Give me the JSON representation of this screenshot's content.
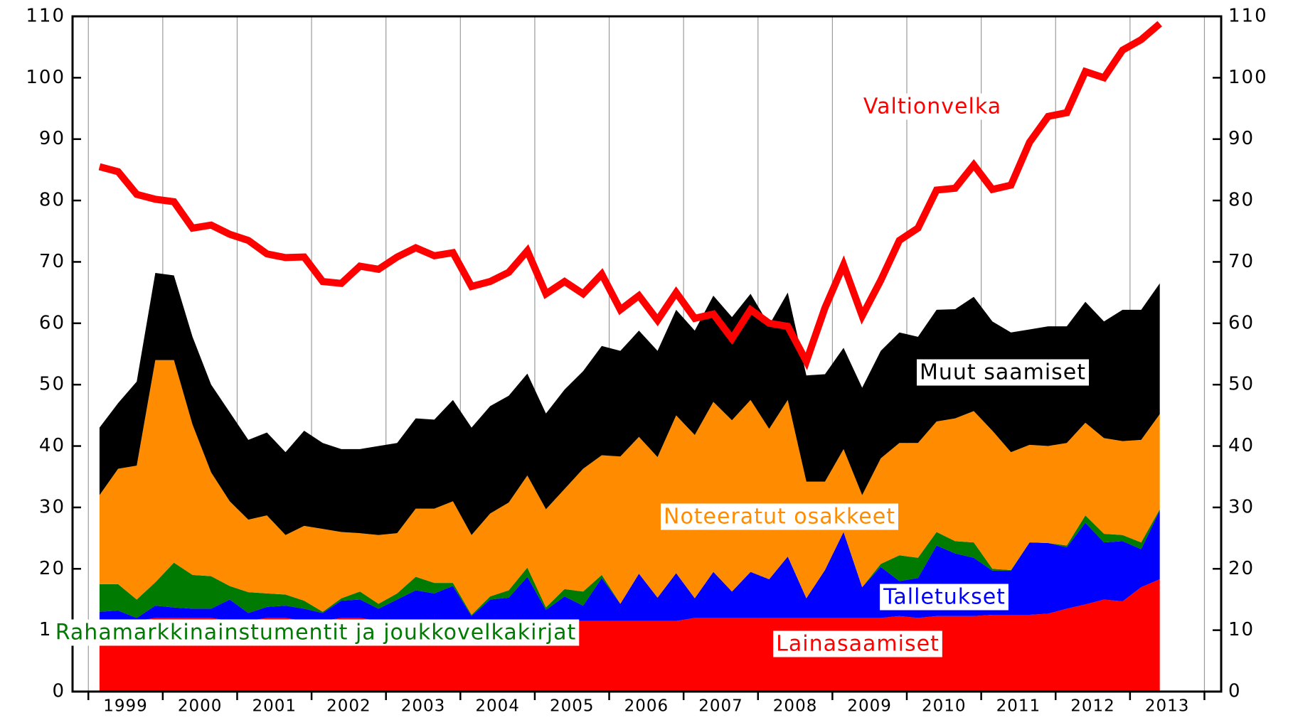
{
  "chart_data": {
    "type": "stacked_area",
    "categories": [
      null,
      "1999",
      null,
      null,
      null,
      "2000",
      null,
      null,
      null,
      "2001",
      null,
      null,
      null,
      "2002",
      null,
      null,
      null,
      "2003",
      null,
      null,
      null,
      "2004",
      null,
      null,
      null,
      "2005",
      null,
      null,
      null,
      "2006",
      null,
      null,
      null,
      "2007",
      null,
      null,
      null,
      "2008",
      null,
      null,
      null,
      "2009",
      null,
      null,
      null,
      "2010",
      null,
      null,
      null,
      "2011",
      null,
      null,
      null,
      "2012",
      null,
      null,
      null,
      "2013"
    ],
    "ylim": [
      0,
      110
    ],
    "yticks": [
      0,
      10,
      20,
      30,
      40,
      50,
      60,
      70,
      80,
      90,
      100,
      110
    ],
    "y2lim": [
      0,
      110
    ],
    "y2ticks": [
      0,
      10,
      20,
      30,
      40,
      50,
      60,
      70,
      80,
      90,
      100,
      110
    ],
    "series": [
      {
        "name": "Lainasaamiset",
        "color": "#ff0000",
        "values": [
          11.5,
          11.5,
          11.5,
          12,
          12,
          12,
          12,
          11.5,
          11.5,
          12,
          12,
          11.5,
          11.5,
          12,
          12,
          11.5,
          11.5,
          11.5,
          11.5,
          11.5,
          11.5,
          11.5,
          11.5,
          11.5,
          11.5,
          11.5,
          11.5,
          11.5,
          11.5,
          11.5,
          11.5,
          11.5,
          12,
          12,
          12,
          12,
          12,
          12,
          12,
          12,
          12,
          12,
          12,
          12.3,
          12,
          12.3,
          12.3,
          12.3,
          12.5,
          12.5,
          12.5,
          12.7,
          13.5,
          14.2,
          15,
          14.7,
          17,
          18.3
        ]
      },
      {
        "name": "Talletukset",
        "color": "#0000ff",
        "values": [
          1.5,
          1.7,
          0.5,
          2,
          1.7,
          1.5,
          1.5,
          3.5,
          1.3,
          1.8,
          2,
          2,
          1.3,
          2.8,
          3,
          2,
          3.5,
          5,
          4.5,
          5.7,
          0.8,
          3.5,
          3.8,
          7.2,
          1.8,
          4,
          2.5,
          7,
          2.8,
          7.7,
          3.8,
          7.8,
          3.2,
          7.5,
          4.3,
          7.5,
          6.3,
          10,
          3.2,
          7.8,
          14,
          5,
          8.3,
          5.7,
          6.5,
          11.5,
          10.2,
          9.5,
          7.2,
          7.2,
          11.8,
          11.5,
          10,
          13.3,
          9.3,
          9.8,
          6.2,
          11.2
        ]
      },
      {
        "name": "Rahamarkkinainstumentit ja joukkovelkakirjat",
        "color": "#007a00",
        "values": [
          4.5,
          4.3,
          3,
          3.8,
          7.3,
          5.5,
          5.3,
          2.2,
          3.4,
          2.2,
          1.8,
          1.3,
          0.2,
          0.4,
          1.3,
          0.8,
          1,
          2.2,
          1.7,
          0.5,
          0.2,
          0.5,
          1.2,
          1.5,
          0.4,
          1.2,
          2.3,
          0.5,
          0,
          0,
          0,
          0,
          0,
          0,
          0,
          0,
          0,
          0,
          0,
          0,
          0,
          0,
          0.5,
          4.2,
          3.3,
          2.2,
          2,
          2.5,
          0.3,
          0.1,
          0,
          0,
          0.3,
          1.2,
          1.4,
          1,
          1.1,
          0.2
        ]
      },
      {
        "name": "Noteeratut osakkeet",
        "color": "#ff8c00",
        "values": [
          14.5,
          18.8,
          21.8,
          36.2,
          33,
          24.5,
          16.9,
          13.8,
          11.8,
          12.7,
          9.7,
          12.2,
          13.5,
          10.8,
          9.5,
          11.2,
          9.8,
          11.1,
          12.1,
          13.3,
          13,
          13.5,
          14.3,
          15,
          16,
          16.3,
          20,
          19.5,
          24,
          22.3,
          22.9,
          25.7,
          26.6,
          27.7,
          27.9,
          28,
          24.5,
          25.5,
          19,
          14.4,
          13.5,
          15,
          17.2,
          18.3,
          18.7,
          18,
          20,
          21.4,
          22.5,
          19.2,
          15.9,
          15.8,
          16.7,
          15.1,
          15.6,
          15.3,
          16.7,
          15.5
        ]
      },
      {
        "name": "Muut saamiset",
        "color": "#000000",
        "values": [
          11,
          10.7,
          13.7,
          14.2,
          13.8,
          14.3,
          14.3,
          14.5,
          13,
          13.5,
          13.5,
          15.5,
          14,
          13.5,
          13.7,
          14.5,
          14.7,
          14.7,
          14.5,
          16.5,
          17.5,
          17.5,
          17.4,
          16.6,
          15.6,
          16.2,
          15.9,
          17.8,
          17.2,
          17.3,
          17.3,
          17.2,
          17,
          17.3,
          16.8,
          17.3,
          16.9,
          17.5,
          17.3,
          17.5,
          16.5,
          17.5,
          17.5,
          18,
          17.3,
          18.2,
          17.8,
          18.6,
          17.8,
          19.5,
          18.8,
          19.5,
          19,
          19.7,
          19,
          21.4,
          21.2,
          21.3
        ]
      },
      {
        "name": "Valtionvelka",
        "color": "#ff0000",
        "type": "line",
        "values": [
          85.5,
          84.7,
          81,
          80.2,
          79.8,
          75.5,
          76,
          74.5,
          73.5,
          71.3,
          70.7,
          70.8,
          66.8,
          66.5,
          69.3,
          68.8,
          70.8,
          72.3,
          71,
          71.5,
          66,
          66.8,
          68.3,
          71.8,
          64.8,
          66.8,
          64.8,
          68,
          62.2,
          64.5,
          60.5,
          65,
          60.8,
          61.5,
          57.5,
          62.2,
          60,
          59.5,
          53.8,
          62.5,
          69.5,
          61.2,
          67,
          73.5,
          75.5,
          81.7,
          82,
          85.8,
          81.8,
          82.5,
          89.5,
          93.7,
          94.3,
          101,
          100,
          104.5,
          106.2,
          108.8
        ]
      }
    ]
  }
}
